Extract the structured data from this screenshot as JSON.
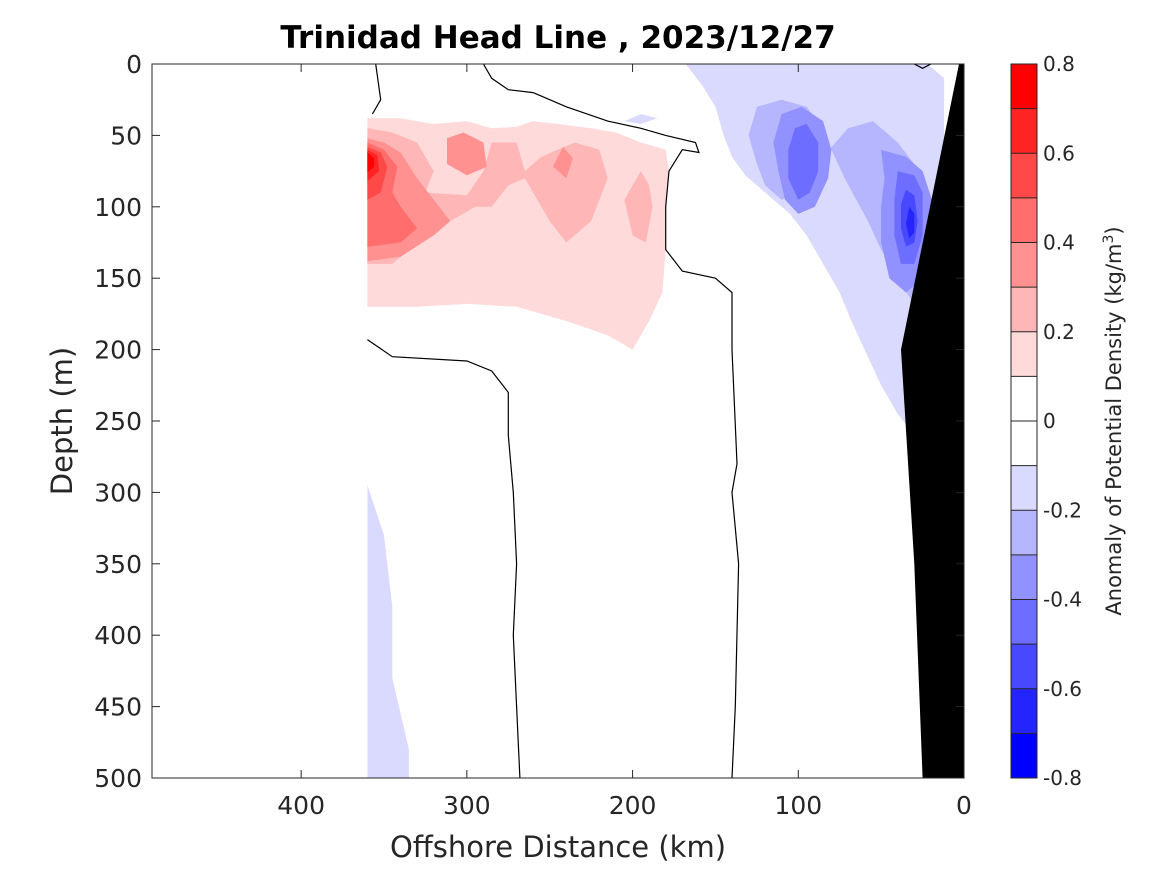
{
  "chart_data": {
    "type": "heatmap",
    "title": "Trinidad Head Line , 2023/12/27",
    "xlabel": "Offshore Distance (km)",
    "ylabel": "Depth (m)",
    "xlim": [
      490,
      0
    ],
    "ylim": [
      0,
      500
    ],
    "x_ticks": [
      "400",
      "300",
      "200",
      "100",
      "0"
    ],
    "x_tick_values": [
      400,
      300,
      200,
      100,
      0
    ],
    "y_ticks": [
      "0",
      "50",
      "100",
      "150",
      "200",
      "250",
      "300",
      "350",
      "400",
      "450",
      "500"
    ],
    "y_tick_values": [
      0,
      50,
      100,
      150,
      200,
      250,
      300,
      350,
      400,
      450,
      500
    ],
    "colorbar": {
      "label_main": "Anomaly of Potential Density (kg/m",
      "label_sup": "3",
      "label_close": ")",
      "ticks": [
        "0.8",
        "0.6",
        "0.4",
        "0.2",
        "0",
        "-0.2",
        "-0.4",
        "-0.6",
        "-0.8"
      ],
      "tick_values": [
        0.8,
        0.6,
        0.4,
        0.2,
        0,
        -0.2,
        -0.4,
        -0.6,
        -0.8
      ],
      "levels": [
        0.8,
        0.7,
        0.6,
        0.5,
        0.4,
        0.3,
        0.2,
        0.1,
        0.0,
        -0.1,
        -0.2,
        -0.3,
        -0.4,
        -0.5,
        -0.6,
        -0.7,
        -0.8
      ],
      "colors": [
        "#ff0000",
        "#ff2424",
        "#ff4848",
        "#ff6d6d",
        "#ff9191",
        "#ffb6b6",
        "#ffdada",
        "#ffffff",
        "#ffffff",
        "#dadaff",
        "#b6b6ff",
        "#9191ff",
        "#6d6dff",
        "#4848ff",
        "#2424ff",
        "#0000ff"
      ]
    },
    "data_start_distance_km": 360,
    "regions": [
      {
        "level": -0.1,
        "points": [
          [
            360,
            295
          ],
          [
            350,
            330
          ],
          [
            345,
            380
          ],
          [
            345,
            430
          ],
          [
            335,
            480
          ],
          [
            335,
            500
          ],
          [
            360,
            500
          ]
        ]
      },
      {
        "level": 0.1,
        "points": [
          [
            360,
            38
          ],
          [
            340,
            38
          ],
          [
            320,
            42
          ],
          [
            300,
            40
          ],
          [
            285,
            45
          ],
          [
            270,
            44
          ],
          [
            260,
            40
          ],
          [
            245,
            42
          ],
          [
            225,
            45
          ],
          [
            210,
            48
          ],
          [
            195,
            55
          ],
          [
            180,
            60
          ],
          [
            178,
            75
          ],
          [
            180,
            100
          ],
          [
            180,
            130
          ],
          [
            182,
            160
          ],
          [
            190,
            180
          ],
          [
            200,
            200
          ],
          [
            215,
            190
          ],
          [
            240,
            180
          ],
          [
            270,
            170
          ],
          [
            300,
            168
          ],
          [
            330,
            170
          ],
          [
            360,
            170
          ]
        ]
      },
      {
        "level": 0.2,
        "points": [
          [
            360,
            45
          ],
          [
            345,
            48
          ],
          [
            330,
            55
          ],
          [
            320,
            75
          ],
          [
            325,
            90
          ],
          [
            300,
            92
          ],
          [
            290,
            75
          ],
          [
            285,
            55
          ],
          [
            270,
            55
          ],
          [
            265,
            75
          ],
          [
            255,
            65
          ],
          [
            235,
            55
          ],
          [
            220,
            60
          ],
          [
            215,
            80
          ],
          [
            225,
            110
          ],
          [
            240,
            125
          ],
          [
            250,
            110
          ],
          [
            260,
            90
          ],
          [
            265,
            80
          ],
          [
            275,
            85
          ],
          [
            285,
            100
          ],
          [
            295,
            100
          ],
          [
            310,
            110
          ],
          [
            330,
            125
          ],
          [
            345,
            140
          ],
          [
            360,
            140
          ]
        ]
      },
      {
        "level": 0.2,
        "points": [
          [
            195,
            75
          ],
          [
            205,
            95
          ],
          [
            200,
            120
          ],
          [
            192,
            125
          ],
          [
            188,
            100
          ],
          [
            190,
            85
          ]
        ]
      },
      {
        "level": 0.3,
        "points": [
          [
            360,
            52
          ],
          [
            350,
            55
          ],
          [
            340,
            62
          ],
          [
            330,
            80
          ],
          [
            320,
            95
          ],
          [
            310,
            110
          ],
          [
            320,
            120
          ],
          [
            340,
            135
          ],
          [
            360,
            138
          ]
        ]
      },
      {
        "level": 0.3,
        "points": [
          [
            312,
            52
          ],
          [
            302,
            48
          ],
          [
            290,
            55
          ],
          [
            288,
            72
          ],
          [
            300,
            78
          ],
          [
            312,
            70
          ]
        ]
      },
      {
        "level": 0.3,
        "points": [
          [
            242,
            58
          ],
          [
            236,
            66
          ],
          [
            240,
            80
          ],
          [
            248,
            72
          ]
        ]
      },
      {
        "level": 0.4,
        "points": [
          [
            360,
            55
          ],
          [
            350,
            60
          ],
          [
            342,
            72
          ],
          [
            345,
            90
          ],
          [
            340,
            100
          ],
          [
            330,
            115
          ],
          [
            340,
            125
          ],
          [
            360,
            128
          ]
        ]
      },
      {
        "level": 0.5,
        "points": [
          [
            360,
            58
          ],
          [
            352,
            62
          ],
          [
            348,
            72
          ],
          [
            352,
            90
          ],
          [
            360,
            95
          ]
        ]
      },
      {
        "level": 0.6,
        "points": [
          [
            360,
            60
          ],
          [
            354,
            64
          ],
          [
            353,
            75
          ],
          [
            360,
            82
          ]
        ]
      },
      {
        "level": 0.7,
        "points": [
          [
            360,
            62
          ],
          [
            356,
            66
          ],
          [
            356,
            72
          ],
          [
            360,
            76
          ]
        ]
      },
      {
        "level": -0.1,
        "points": [
          [
            168,
            0
          ],
          [
            158,
            15
          ],
          [
            150,
            30
          ],
          [
            145,
            50
          ],
          [
            140,
            65
          ],
          [
            132,
            78
          ],
          [
            120,
            90
          ],
          [
            105,
            105
          ],
          [
            95,
            120
          ],
          [
            85,
            140
          ],
          [
            75,
            160
          ],
          [
            68,
            180
          ],
          [
            60,
            200
          ],
          [
            50,
            225
          ],
          [
            40,
            245
          ],
          [
            30,
            260
          ],
          [
            20,
            275
          ],
          [
            12,
            265
          ],
          [
            12,
            10
          ],
          [
            22,
            0
          ]
        ]
      },
      {
        "level": -0.1,
        "points": [
          [
            195,
            35
          ],
          [
            185,
            38
          ],
          [
            195,
            42
          ],
          [
            205,
            40
          ]
        ]
      },
      {
        "level": -0.2,
        "points": [
          [
            125,
            30
          ],
          [
            110,
            25
          ],
          [
            95,
            30
          ],
          [
            85,
            45
          ],
          [
            80,
            60
          ],
          [
            72,
            80
          ],
          [
            65,
            95
          ],
          [
            58,
            110
          ],
          [
            50,
            130
          ],
          [
            40,
            150
          ],
          [
            32,
            165
          ],
          [
            25,
            180
          ],
          [
            20,
            150
          ],
          [
            22,
            100
          ],
          [
            30,
            70
          ],
          [
            40,
            55
          ],
          [
            55,
            40
          ],
          [
            70,
            45
          ],
          [
            85,
            65
          ],
          [
            95,
            75
          ],
          [
            100,
            90
          ],
          [
            110,
            95
          ],
          [
            120,
            85
          ],
          [
            125,
            70
          ],
          [
            130,
            50
          ]
        ]
      },
      {
        "level": -0.3,
        "points": [
          [
            110,
            35
          ],
          [
            98,
            30
          ],
          [
            85,
            40
          ],
          [
            80,
            60
          ],
          [
            82,
            80
          ],
          [
            90,
            100
          ],
          [
            100,
            105
          ],
          [
            108,
            95
          ],
          [
            112,
            75
          ],
          [
            115,
            55
          ]
        ]
      },
      {
        "level": -0.3,
        "points": [
          [
            50,
            60
          ],
          [
            35,
            65
          ],
          [
            25,
            75
          ],
          [
            18,
            100
          ],
          [
            20,
            130
          ],
          [
            25,
            150
          ],
          [
            35,
            160
          ],
          [
            45,
            150
          ],
          [
            50,
            125
          ],
          [
            50,
            100
          ],
          [
            48,
            80
          ]
        ]
      },
      {
        "level": -0.4,
        "points": [
          [
            102,
            45
          ],
          [
            95,
            42
          ],
          [
            88,
            55
          ],
          [
            88,
            75
          ],
          [
            93,
            90
          ],
          [
            100,
            95
          ],
          [
            106,
            80
          ],
          [
            106,
            60
          ]
        ]
      },
      {
        "level": -0.4,
        "points": [
          [
            40,
            75
          ],
          [
            30,
            78
          ],
          [
            25,
            90
          ],
          [
            25,
            120
          ],
          [
            30,
            140
          ],
          [
            38,
            140
          ],
          [
            42,
            120
          ],
          [
            42,
            95
          ]
        ]
      },
      {
        "level": -0.5,
        "points": [
          [
            35,
            88
          ],
          [
            30,
            92
          ],
          [
            28,
            110
          ],
          [
            30,
            125
          ],
          [
            35,
            128
          ],
          [
            38,
            115
          ],
          [
            38,
            98
          ]
        ]
      },
      {
        "level": -0.6,
        "points": [
          [
            33,
            100
          ],
          [
            30,
            105
          ],
          [
            30,
            118
          ],
          [
            33,
            122
          ],
          [
            35,
            112
          ]
        ]
      }
    ],
    "contour_lines": [
      [
        [
          355,
          0
        ],
        [
          352,
          25
        ],
        [
          357,
          35
        ]
      ],
      [
        [
          290,
          0
        ],
        [
          285,
          10
        ],
        [
          275,
          18
        ],
        [
          260,
          20
        ]
      ],
      [
        [
          260,
          20
        ],
        [
          240,
          30
        ],
        [
          215,
          40
        ],
        [
          195,
          45
        ],
        [
          180,
          50
        ],
        [
          162,
          55
        ],
        [
          160,
          62
        ],
        [
          170,
          60
        ],
        [
          178,
          75
        ],
        [
          180,
          100
        ],
        [
          180,
          130
        ],
        [
          170,
          145
        ],
        [
          150,
          150
        ],
        [
          140,
          160
        ],
        [
          140,
          200
        ],
        [
          137,
          280
        ],
        [
          140,
          300
        ],
        [
          136,
          350
        ],
        [
          138,
          450
        ],
        [
          140,
          500
        ]
      ],
      [
        [
          360,
          193
        ],
        [
          345,
          205
        ],
        [
          300,
          208
        ],
        [
          285,
          215
        ],
        [
          275,
          230
        ],
        [
          275,
          260
        ],
        [
          272,
          300
        ],
        [
          270,
          350
        ],
        [
          272,
          400
        ],
        [
          270,
          450
        ],
        [
          268,
          500
        ]
      ],
      [
        [
          30,
          0
        ],
        [
          25,
          3
        ],
        [
          20,
          0
        ]
      ]
    ],
    "seafloor": [
      [
        0,
        0
      ],
      [
        0,
        500
      ],
      [
        25,
        500
      ],
      [
        30,
        350
      ],
      [
        38,
        200
      ],
      [
        3,
        0
      ]
    ]
  }
}
